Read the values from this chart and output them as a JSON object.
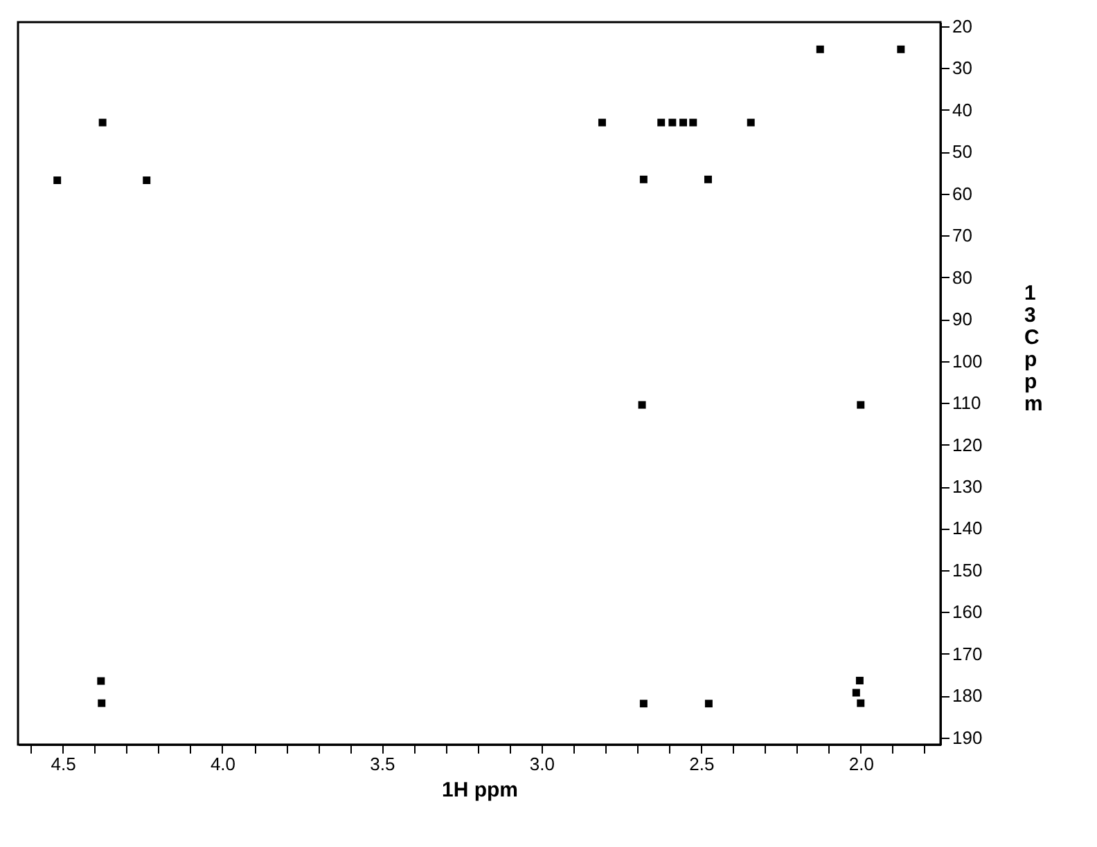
{
  "chart_data": {
    "type": "scatter",
    "xlabel": "1H ppm",
    "ylabel": "13C ppm",
    "series": [
      {
        "color": "#000000",
        "x": [
          2.127,
          1.874,
          2.81,
          2.625,
          2.59,
          2.556,
          2.525,
          2.344,
          2.68,
          2.478,
          4.375,
          4.517,
          4.237,
          2.685,
          2.0,
          4.38,
          4.378,
          2.68,
          2.476,
          2.003,
          2.014,
          2.0
        ],
        "values": [
          25.5,
          25.5,
          43.0,
          43.0,
          43.0,
          43.0,
          43.0,
          43.0,
          56.6,
          56.6,
          43.0,
          56.8,
          56.8,
          110.5,
          110.5,
          176.5,
          181.8,
          181.9,
          181.9,
          176.4,
          179.3,
          181.8
        ]
      }
    ],
    "xlim": [
      4.64,
      1.75
    ],
    "xticks": [
      {
        "value": 4.6,
        "label": null
      },
      4.5,
      {
        "value": 4.4,
        "label": null
      },
      {
        "value": 4.3,
        "label": null
      },
      {
        "value": 4.2,
        "label": null
      },
      {
        "value": 4.1,
        "label": null
      },
      {
        "value": 4.0,
        "label": "4.0"
      },
      {
        "value": 3.9,
        "label": null
      },
      {
        "value": 3.8,
        "label": null
      },
      {
        "value": 3.7,
        "label": null
      },
      {
        "value": 3.6,
        "label": null
      },
      3.5,
      {
        "value": 3.4,
        "label": null
      },
      {
        "value": 3.3,
        "label": null
      },
      {
        "value": 3.2,
        "label": null
      },
      {
        "value": 3.1,
        "label": null
      },
      {
        "value": 3.0,
        "label": "3.0"
      },
      {
        "value": 2.9,
        "label": null
      },
      {
        "value": 2.8,
        "label": null
      },
      {
        "value": 2.7,
        "label": null
      },
      {
        "value": 2.6,
        "label": null
      },
      2.5,
      {
        "value": 2.4,
        "label": null
      },
      {
        "value": 2.3,
        "label": null
      },
      {
        "value": 2.2,
        "label": null
      },
      {
        "value": 2.1,
        "label": null
      },
      {
        "value": 2.0,
        "label": "2.0"
      },
      {
        "value": 1.9,
        "label": null
      },
      {
        "value": 1.8,
        "label": null
      }
    ],
    "ylim": [
      191.7,
      19
    ],
    "yticks": [
      20,
      30,
      40,
      50,
      60,
      70,
      80,
      90,
      100,
      110,
      120,
      130,
      140,
      150,
      160,
      170,
      180,
      190
    ],
    "grid": false,
    "marker": "square"
  }
}
